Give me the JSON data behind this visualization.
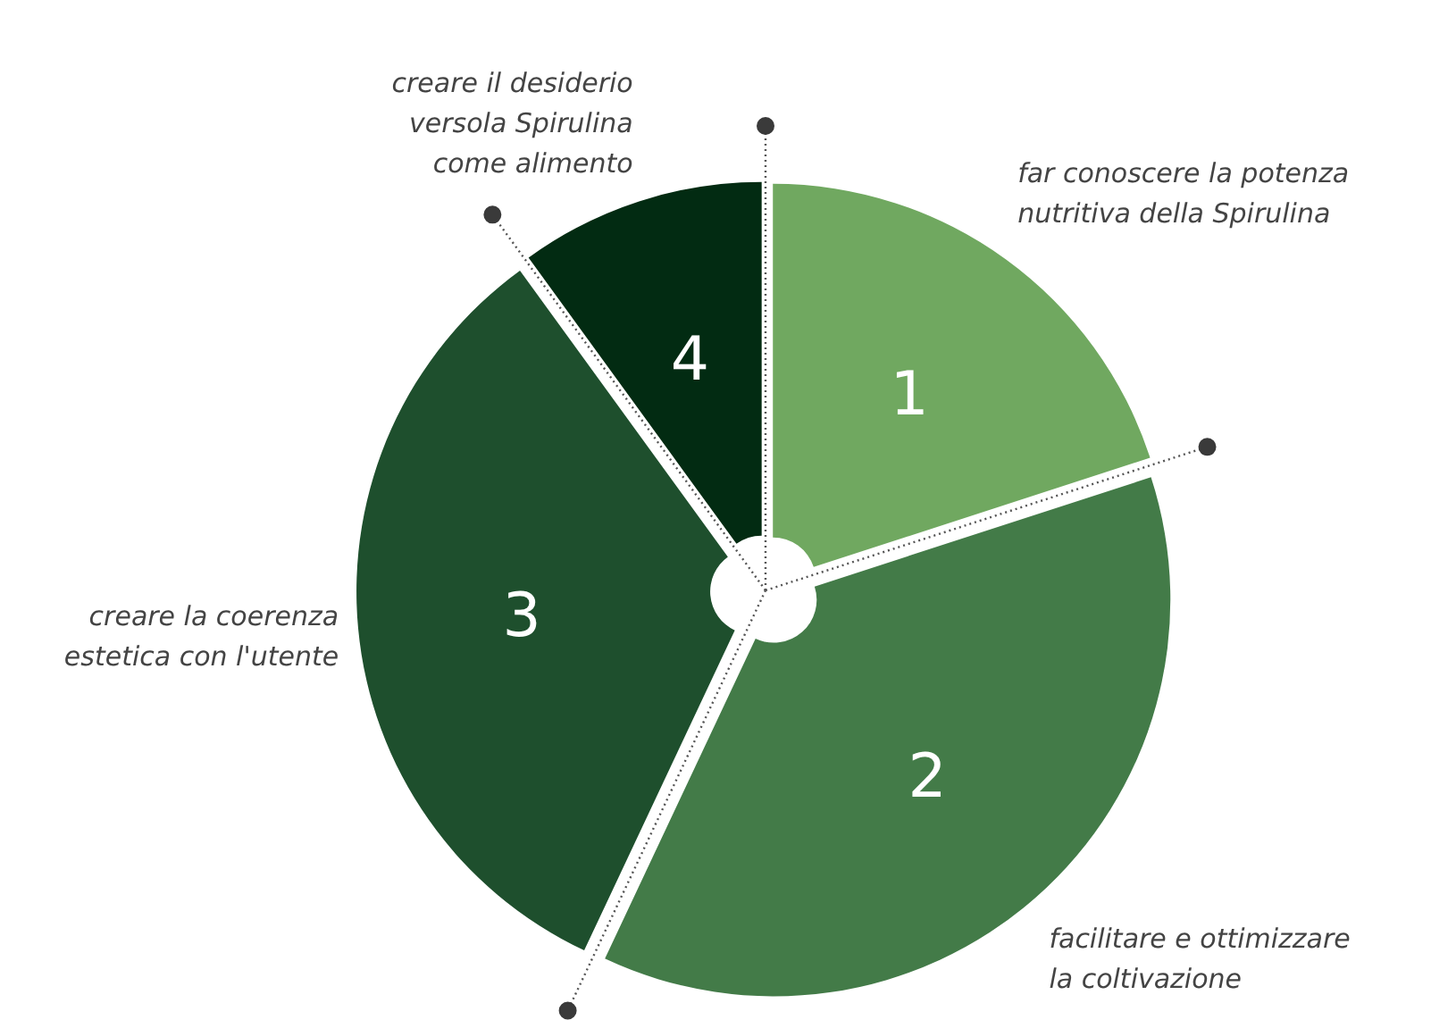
{
  "chart_data": {
    "type": "pie",
    "categories": [
      "far conoscere la potenza\nnutritiva della Spirulina",
      "facilitare e ottimizzare\nla coltivazione",
      "creare la coerenza\nestetica con l'utente",
      "creare il desiderio\nversola Spirulina\ncome alimento"
    ],
    "values": [
      20,
      37,
      33,
      10
    ],
    "colors": [
      "#70a860",
      "#437b48",
      "#1e4f2d",
      "#022b12"
    ],
    "annotations": [
      "1",
      "2",
      "3",
      "4"
    ]
  }
}
